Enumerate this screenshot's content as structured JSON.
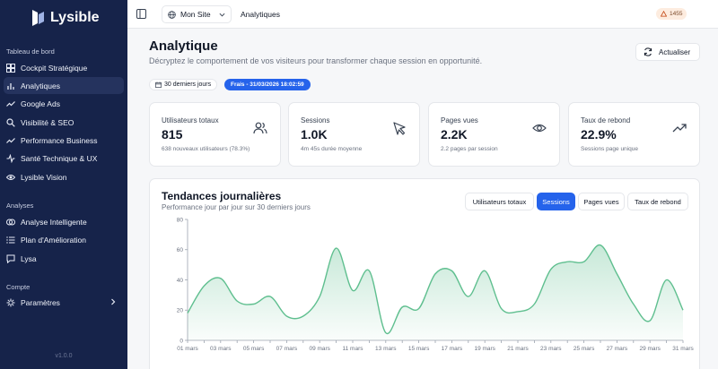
{
  "sidebar": {
    "brand": "Lysible",
    "sections": [
      {
        "title": "Tableau de bord"
      },
      {
        "title": "Analyses"
      },
      {
        "title": "Compte"
      }
    ],
    "items": [
      {
        "label": "Cockpit Stratégique",
        "icon": "grid-icon"
      },
      {
        "label": "Analytiques",
        "icon": "bar-chart-icon",
        "active": true
      },
      {
        "label": "Google Ads",
        "icon": "trend-icon"
      },
      {
        "label": "Visibilité & SEO",
        "icon": "search-icon"
      },
      {
        "label": "Performance Business",
        "icon": "trend-icon"
      },
      {
        "label": "Santé Technique & UX",
        "icon": "pulse-icon"
      },
      {
        "label": "Lysible Vision",
        "icon": "eye-icon"
      },
      {
        "label": "Analyse Intelligente",
        "icon": "brain-icon"
      },
      {
        "label": "Plan d'Amélioration",
        "icon": "list-icon"
      },
      {
        "label": "Lysa",
        "icon": "chat-icon"
      },
      {
        "label": "Paramètres",
        "icon": "gear-icon"
      }
    ],
    "version": "v1.0.0"
  },
  "topbar": {
    "site_label": "Mon Site",
    "breadcrumb": "Analytiques",
    "badge": "1455"
  },
  "header": {
    "title": "Analytique",
    "subtitle": "Décryptez le comportement de vos visiteurs pour transformer chaque session en opportunité.",
    "refresh_label": "Actualiser",
    "period": "30 derniers jours",
    "freshness": "Frais - 31/03/2026 18:02:59"
  },
  "kpis": [
    {
      "label": "Utilisateurs totaux",
      "value": "815",
      "sub": "638 nouveaux utilisateurs (78.3%)",
      "icon": "users-icon"
    },
    {
      "label": "Sessions",
      "value": "1.0K",
      "sub": "4m 45s durée moyenne",
      "icon": "cursor-icon"
    },
    {
      "label": "Pages vues",
      "value": "2.2K",
      "sub": "2.2 pages par session",
      "icon": "eye-icon"
    },
    {
      "label": "Taux de rebond",
      "value": "22.9%",
      "sub": "Sessions page unique",
      "icon": "trending-up-icon"
    }
  ],
  "trends": {
    "title": "Tendances journalières",
    "subtitle": "Performance jour par jour sur 30 derniers jours",
    "tabs": [
      {
        "label": "Utilisateurs totaux"
      },
      {
        "label": "Sessions",
        "active": true
      },
      {
        "label": "Pages vues"
      },
      {
        "label": "Taux de rebond"
      }
    ]
  },
  "colors": {
    "accent": "#2563eb",
    "sidebar_bg": "#16234a",
    "line": "#5fbf8f"
  },
  "chart_data": {
    "type": "area",
    "x": [
      "01 mars",
      "02 mars",
      "03 mars",
      "04 mars",
      "05 mars",
      "06 mars",
      "07 mars",
      "08 mars",
      "09 mars",
      "10 mars",
      "11 mars",
      "12 mars",
      "13 mars",
      "14 mars",
      "15 mars",
      "16 mars",
      "17 mars",
      "18 mars",
      "19 mars",
      "20 mars",
      "21 mars",
      "22 mars",
      "23 mars",
      "24 mars",
      "25 mars",
      "26 mars",
      "27 mars",
      "28 mars",
      "29 mars",
      "30 mars",
      "31 mars"
    ],
    "x_tick_labels": [
      "01 mars",
      "03 mars",
      "05 mars",
      "07 mars",
      "09 mars",
      "11 mars",
      "13 mars",
      "15 mars",
      "17 mars",
      "19 mars",
      "21 mars",
      "23 mars",
      "25 mars",
      "27 mars",
      "29 mars",
      "31 mars"
    ],
    "series": [
      {
        "values": [
          18,
          36,
          41,
          26,
          24,
          29,
          16,
          16,
          29,
          61,
          33,
          46,
          5,
          22,
          21,
          44,
          46,
          29,
          46,
          21,
          19,
          24,
          47,
          52,
          52,
          63,
          44,
          24,
          13,
          40,
          20
        ]
      }
    ],
    "ylim": [
      0,
      80
    ],
    "yticks": [
      0,
      20,
      40,
      60,
      80
    ],
    "grid": false
  }
}
